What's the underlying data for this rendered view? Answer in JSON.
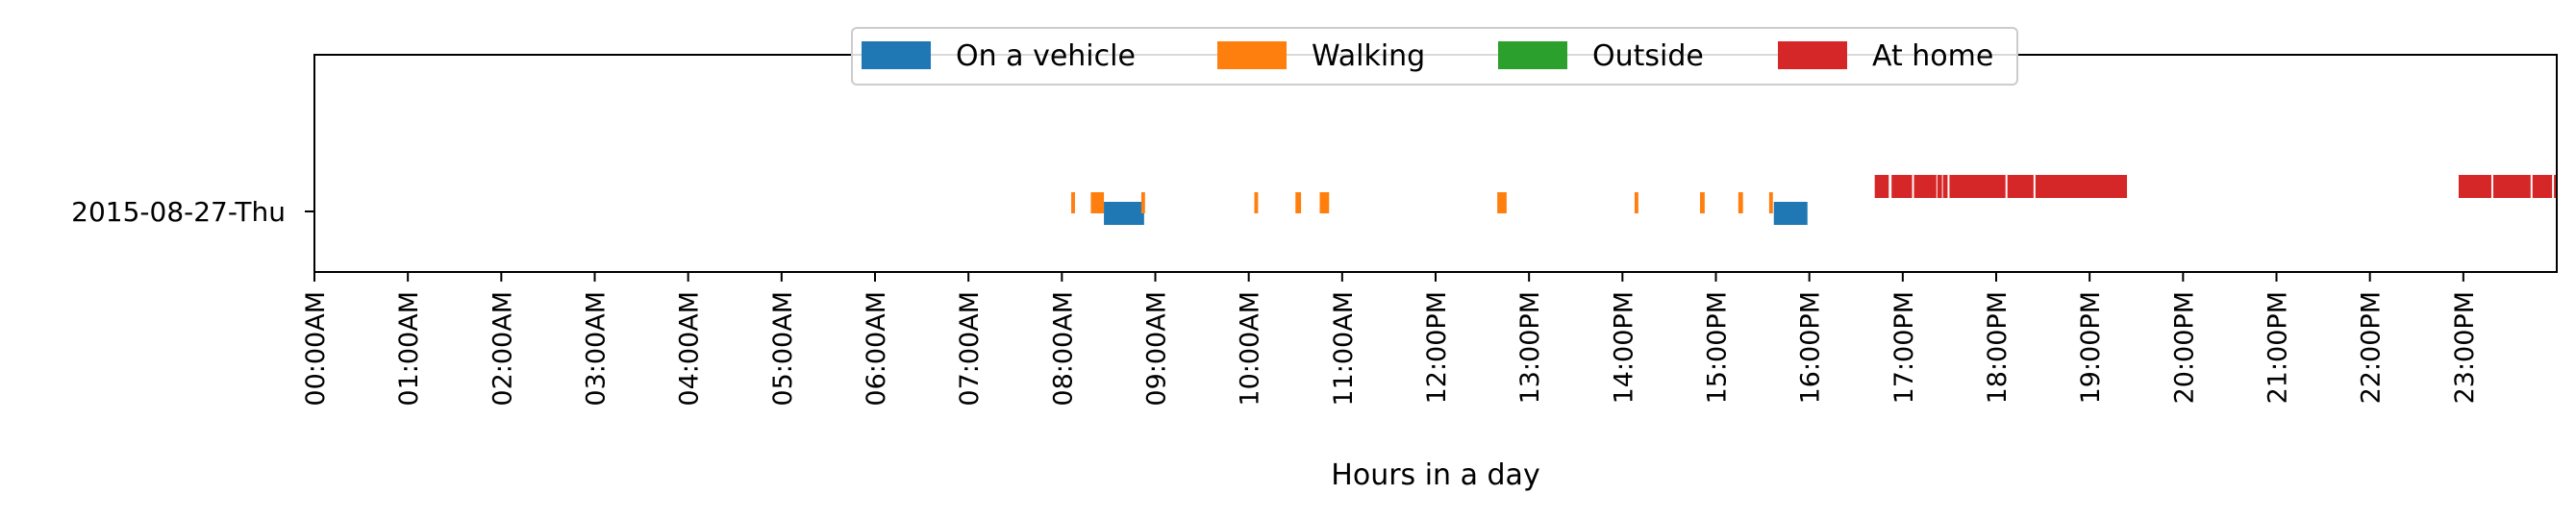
{
  "chart_data": {
    "type": "timeline",
    "title": "",
    "xlabel": "Hours in a day",
    "ylabel": "",
    "xlim": [
      0,
      24
    ],
    "grid": false,
    "legend_placement": "top-center",
    "y_category": "2015-08-27-Thu",
    "x_tick_labels": [
      "00:00AM",
      "01:00AM",
      "02:00AM",
      "03:00AM",
      "04:00AM",
      "05:00AM",
      "06:00AM",
      "07:00AM",
      "08:00AM",
      "09:00AM",
      "10:00AM",
      "11:00AM",
      "12:00PM",
      "13:00PM",
      "14:00PM",
      "15:00PM",
      "16:00PM",
      "17:00PM",
      "18:00PM",
      "19:00PM",
      "20:00PM",
      "21:00PM",
      "22:00PM",
      "23:00PM"
    ],
    "series": [
      {
        "name": "On a vehicle",
        "color": "#1f77b4",
        "intervals": [
          [
            8.45,
            8.88
          ],
          [
            15.62,
            15.98
          ]
        ]
      },
      {
        "name": "Walking",
        "color": "#ff7f0e",
        "intervals": [
          [
            8.1,
            8.14
          ],
          [
            8.31,
            8.45
          ],
          [
            8.85,
            8.89
          ],
          [
            10.06,
            10.1
          ],
          [
            10.5,
            10.56
          ],
          [
            10.76,
            10.86
          ],
          [
            12.66,
            12.76
          ],
          [
            14.13,
            14.17
          ],
          [
            14.83,
            14.88
          ],
          [
            15.24,
            15.29
          ],
          [
            15.57,
            15.61
          ]
        ]
      },
      {
        "name": "Outside",
        "color": "#2ca02c",
        "intervals": []
      },
      {
        "name": "At home",
        "color": "#d62728",
        "intervals": [
          [
            16.7,
            16.85
          ],
          [
            16.88,
            17.1
          ],
          [
            17.12,
            17.36
          ],
          [
            17.37,
            17.42
          ],
          [
            17.43,
            17.48
          ],
          [
            17.5,
            18.1
          ],
          [
            18.12,
            18.4
          ],
          [
            18.42,
            19.4
          ],
          [
            22.95,
            23.3
          ],
          [
            23.32,
            23.72
          ],
          [
            23.74,
            23.95
          ],
          [
            23.97,
            24.0
          ]
        ]
      }
    ]
  }
}
